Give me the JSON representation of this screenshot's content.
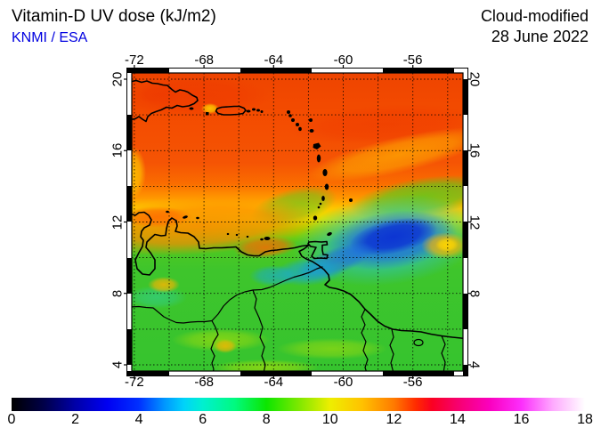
{
  "header": {
    "title": "Vitamin-D UV dose (kJ/m2)",
    "source": "KNMI / ESA",
    "mode": "Cloud-modified",
    "date": "28 June 2022"
  },
  "map": {
    "lon_tick_labels": [
      "-72",
      "-68",
      "-64",
      "-60",
      "-56"
    ],
    "lat_tick_labels": [
      "20",
      "16",
      "12",
      "8",
      "4"
    ]
  },
  "colorbar": {
    "tick_labels": [
      "0",
      "2",
      "4",
      "6",
      "8",
      "10",
      "12",
      "14",
      "16",
      "18"
    ],
    "unit": "kJ/m2",
    "stops": [
      {
        "value": 0,
        "color": "#000000"
      },
      {
        "value": 1,
        "color": "#000048"
      },
      {
        "value": 2,
        "color": "#0000a8"
      },
      {
        "value": 3,
        "color": "#0000f2"
      },
      {
        "value": 4,
        "color": "#0030ff"
      },
      {
        "value": 4.8,
        "color": "#0096ff"
      },
      {
        "value": 5.4,
        "color": "#00d2fa"
      },
      {
        "value": 6,
        "color": "#00f0d0"
      },
      {
        "value": 7,
        "color": "#00fa80"
      },
      {
        "value": 8,
        "color": "#0ce600"
      },
      {
        "value": 9,
        "color": "#7ce800"
      },
      {
        "value": 10,
        "color": "#eeee00"
      },
      {
        "value": 11,
        "color": "#ffc200"
      },
      {
        "value": 12,
        "color": "#ff7a00"
      },
      {
        "value": 12.7,
        "color": "#ff2a00"
      },
      {
        "value": 13.2,
        "color": "#fa0022"
      },
      {
        "value": 14,
        "color": "#f7006e"
      },
      {
        "value": 15,
        "color": "#fa00be"
      },
      {
        "value": 16,
        "color": "#fc2efc"
      },
      {
        "value": 17,
        "color": "#feaafe"
      },
      {
        "value": 18,
        "color": "#ffffff"
      }
    ]
  },
  "colors": {
    "source_blue": "#0000e0",
    "land_outline": "#000000"
  },
  "chart_data": {
    "type": "heatmap",
    "title": "Vitamin-D UV dose (kJ/m2)",
    "subtitle": "KNMI / ESA",
    "annotation": "Cloud-modified",
    "date": "28 June 2022",
    "x_axis": {
      "ticks": [
        -72,
        -68,
        -64,
        -60,
        -56
      ],
      "range": [
        -72.3,
        -53.1
      ],
      "grid_step_deg": 2
    },
    "y_axis": {
      "ticks": [
        20,
        16,
        12,
        8,
        4
      ],
      "range": [
        3.7,
        20.4
      ],
      "grid_step_deg": 2
    },
    "colorbar_scale": {
      "range": [
        0,
        18
      ],
      "ticks": [
        0,
        2,
        4,
        6,
        8,
        10,
        12,
        14,
        16,
        18
      ],
      "unit": "kJ/m2"
    },
    "notable_values": [
      {
        "area": "northern Caribbean (Hispaniola, Puerto Rico, 14-21N)",
        "approx_dose": 12.5
      },
      {
        "area": "cloudy low-dose patch centered near 57.5W 11.5N",
        "approx_dose": 3.5
      },
      {
        "area": "Venezuelan coastal strip 10-12N",
        "approx_dose": 11.5
      },
      {
        "area": "teal patch near Orinoco delta 62W 9.5N",
        "approx_dose": 6
      },
      {
        "area": "southern interior Venezuela / Guyana (4-9N)",
        "approx_dose": 7.5
      },
      {
        "area": "yellow spot at right edge 54.5W 11N",
        "approx_dose": 10.5
      }
    ]
  }
}
